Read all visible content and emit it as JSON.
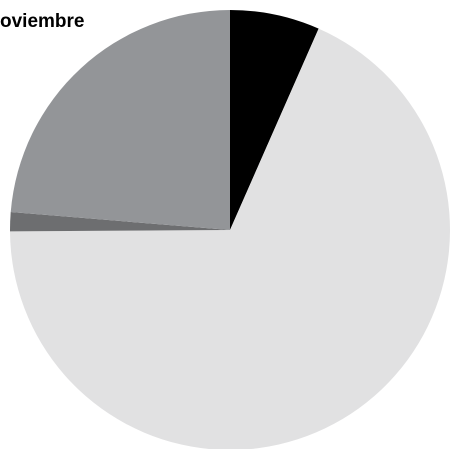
{
  "chart_data": {
    "type": "pie",
    "title": "oviembre",
    "values": [
      6.6,
      68.3,
      1.4,
      23.7
    ],
    "colors": [
      "#000000",
      "#e1e1e2",
      "#6d6e70",
      "#939598"
    ]
  }
}
